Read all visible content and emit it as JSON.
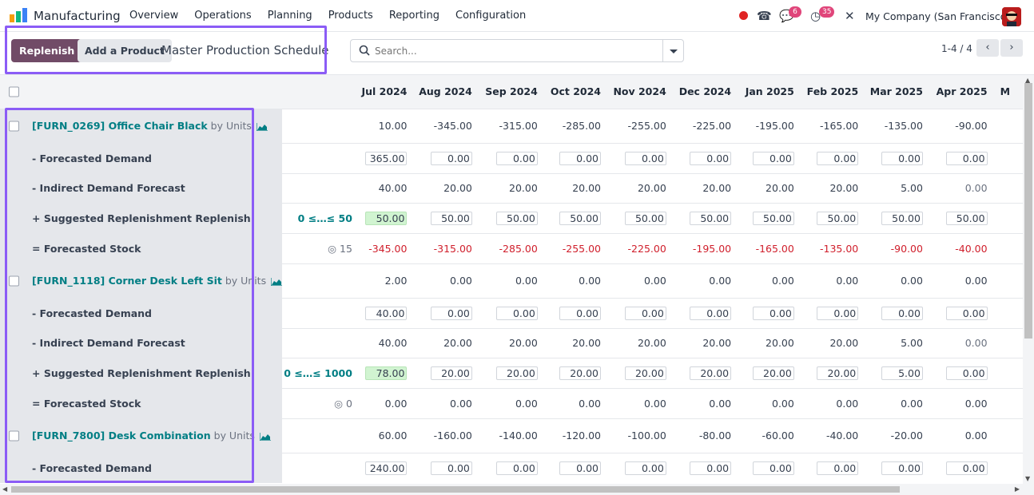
{
  "navbar": {
    "app_name": "Manufacturing",
    "menu": [
      "Overview",
      "Operations",
      "Planning",
      "Products",
      "Reporting",
      "Configuration"
    ],
    "messages_count": "6",
    "activities_count": "35",
    "company": "My Company (San Francisco)"
  },
  "control": {
    "replenish_label": "Replenish",
    "add_product_label": "Add a Product",
    "title": "Master Production Schedule",
    "search_placeholder": "Search...",
    "pager": "1-4 / 4"
  },
  "columns": [
    "Jul 2024",
    "Aug 2024",
    "Sep 2024",
    "Oct 2024",
    "Nov 2024",
    "Dec 2024",
    "Jan 2025",
    "Feb 2025",
    "Mar 2025",
    "Apr 2025",
    "M"
  ],
  "labels": {
    "forecasted_demand": "- Forecasted Demand",
    "indirect_demand": "- Indirect Demand Forecast",
    "suggested": "+ Suggested Replenishment",
    "replenish": "Replenish",
    "forecasted_stock": "= Forecasted Stock",
    "by_units": "by Units"
  },
  "products": [
    {
      "name": "[FURN_0269] Office Chair Black",
      "starting": [
        "10.00",
        "-345.00",
        "-315.00",
        "-285.00",
        "-255.00",
        "-225.00",
        "-195.00",
        "-165.00",
        "-135.00",
        "-90.00"
      ],
      "demand": [
        "365.00",
        "0.00",
        "0.00",
        "0.00",
        "0.00",
        "0.00",
        "0.00",
        "0.00",
        "0.00",
        "0.00"
      ],
      "indirect": [
        "40.00",
        "20.00",
        "20.00",
        "20.00",
        "20.00",
        "20.00",
        "20.00",
        "20.00",
        "5.00",
        "0.00"
      ],
      "bounds": "0 ≤…≤ 50",
      "replenishment": [
        "50.00",
        "50.00",
        "50.00",
        "50.00",
        "50.00",
        "50.00",
        "50.00",
        "50.00",
        "50.00",
        "50.00"
      ],
      "safety": "15",
      "stock": [
        "-345.00",
        "-315.00",
        "-285.00",
        "-255.00",
        "-225.00",
        "-195.00",
        "-165.00",
        "-135.00",
        "-90.00",
        "-40.00"
      ]
    },
    {
      "name": "[FURN_1118] Corner Desk Left Sit",
      "starting": [
        "2.00",
        "0.00",
        "0.00",
        "0.00",
        "0.00",
        "0.00",
        "0.00",
        "0.00",
        "0.00",
        "0.00"
      ],
      "demand": [
        "40.00",
        "0.00",
        "0.00",
        "0.00",
        "0.00",
        "0.00",
        "0.00",
        "0.00",
        "0.00",
        "0.00"
      ],
      "indirect": [
        "40.00",
        "20.00",
        "20.00",
        "20.00",
        "20.00",
        "20.00",
        "20.00",
        "20.00",
        "5.00",
        "0.00"
      ],
      "bounds": "0 ≤…≤ 1000",
      "replenishment": [
        "78.00",
        "20.00",
        "20.00",
        "20.00",
        "20.00",
        "20.00",
        "20.00",
        "20.00",
        "5.00",
        "0.00"
      ],
      "safety": "0",
      "stock": [
        "0.00",
        "0.00",
        "0.00",
        "0.00",
        "0.00",
        "0.00",
        "0.00",
        "0.00",
        "0.00",
        "0.00"
      ]
    },
    {
      "name": "[FURN_7800] Desk Combination",
      "starting": [
        "60.00",
        "-160.00",
        "-140.00",
        "-120.00",
        "-100.00",
        "-80.00",
        "-60.00",
        "-40.00",
        "-20.00",
        "0.00"
      ],
      "demand": [
        "240.00",
        "0.00",
        "0.00",
        "0.00",
        "0.00",
        "0.00",
        "0.00",
        "0.00",
        "0.00",
        "0.00"
      ]
    }
  ]
}
